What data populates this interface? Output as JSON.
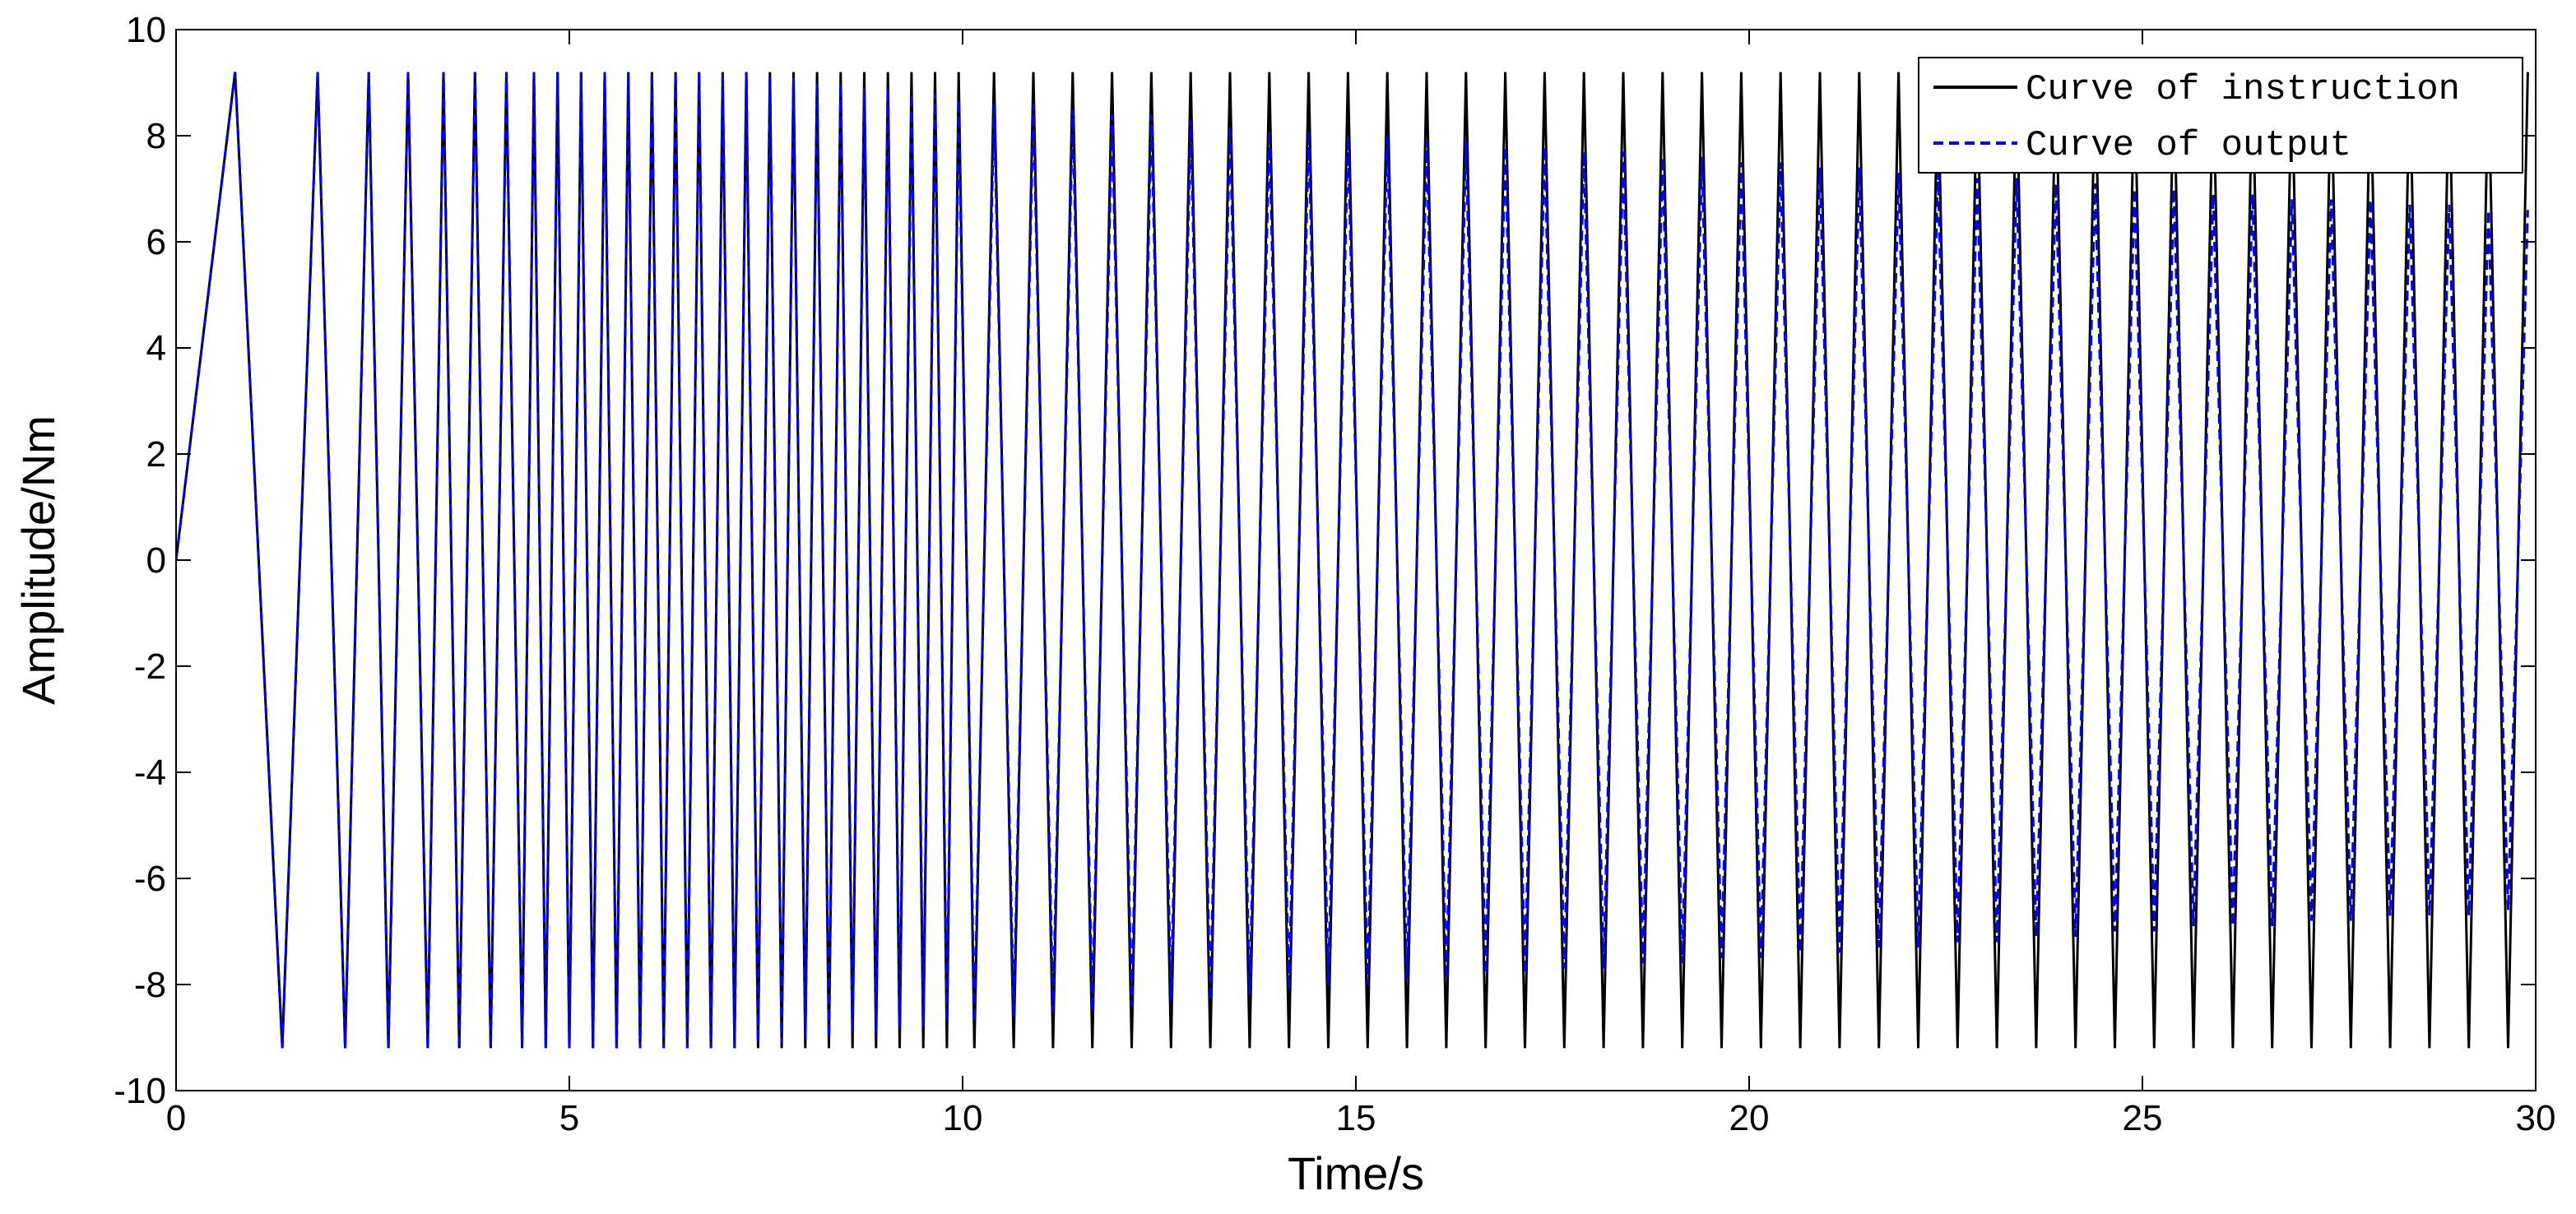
{
  "chart_data": {
    "type": "line",
    "xlabel": "Time/s",
    "ylabel": "Amplitude/Nm",
    "xlim": [
      0,
      30
    ],
    "ylim": [
      -10,
      10
    ],
    "xticks": [
      0,
      5,
      10,
      15,
      20,
      25,
      30
    ],
    "yticks": [
      -10,
      -8,
      -6,
      -4,
      -2,
      0,
      2,
      4,
      6,
      8,
      10
    ],
    "grid": false,
    "legend": "upper right",
    "x": [
      0,
      0.75,
      1.35,
      1.8,
      2.15,
      2.45,
      2.7,
      2.95,
      3.2,
      3.4,
      3.6,
      3.8,
      4.0,
      4.2,
      4.4,
      4.55,
      4.7,
      4.85,
      5.0,
      5.15,
      5.3,
      5.45,
      5.6,
      5.75,
      5.9,
      6.05,
      6.2,
      6.35,
      6.5,
      6.65,
      6.8,
      6.95,
      7.1,
      7.25,
      7.4,
      7.55,
      7.7,
      7.85,
      8.0,
      8.15,
      8.3,
      8.45,
      8.6,
      8.75,
      8.9,
      9.05,
      9.2,
      9.35,
      9.5,
      9.65,
      9.8,
      9.95,
      10.15,
      10.4,
      10.65,
      10.9,
      11.15,
      11.4,
      11.65,
      11.9,
      12.15,
      12.4,
      12.65,
      12.9,
      13.15,
      13.4,
      13.65,
      13.9,
      14.15,
      14.4,
      14.65,
      14.9,
      15.15,
      15.4,
      15.65,
      15.9,
      16.15,
      16.4,
      16.65,
      16.9,
      17.15,
      17.4,
      17.65,
      17.9,
      18.15,
      18.4,
      18.65,
      18.9,
      19.15,
      19.4,
      19.65,
      19.9,
      20.15,
      20.4,
      20.65,
      20.9,
      21.15,
      21.4,
      21.65,
      21.9,
      22.15,
      22.4,
      22.65,
      22.9,
      23.15,
      23.4,
      23.65,
      23.9,
      24.15,
      24.4,
      24.65,
      24.9,
      25.15,
      25.4,
      25.65,
      25.9,
      26.15,
      26.4,
      26.65,
      26.9,
      27.15,
      27.4,
      27.65,
      27.9,
      28.15,
      28.4,
      28.65,
      28.9,
      29.15,
      29.4,
      29.65,
      29.9
    ],
    "series": [
      {
        "name": "Curve of instruction",
        "color": "#000000",
        "linestyle": "solid",
        "values": [
          0,
          9.2,
          -9.2,
          9.2,
          -9.2,
          9.2,
          -9.2,
          9.2,
          -9.2,
          9.2,
          -9.2,
          9.2,
          -9.2,
          9.2,
          -9.2,
          9.2,
          -9.2,
          9.2,
          -9.2,
          9.2,
          -9.2,
          9.2,
          -9.2,
          9.2,
          -9.2,
          9.2,
          -9.2,
          9.2,
          -9.2,
          9.2,
          -9.2,
          9.2,
          -9.2,
          9.2,
          -9.2,
          9.2,
          -9.2,
          9.2,
          -9.2,
          9.2,
          -9.2,
          9.2,
          -9.2,
          9.2,
          -9.2,
          9.2,
          -9.2,
          9.2,
          -9.2,
          9.2,
          -9.2,
          9.2,
          -9.2,
          9.2,
          -9.2,
          9.2,
          -9.2,
          9.2,
          -9.2,
          9.2,
          -9.2,
          9.2,
          -9.2,
          9.2,
          -9.2,
          9.2,
          -9.2,
          9.2,
          -9.2,
          9.2,
          -9.2,
          9.2,
          -9.2,
          9.2,
          -9.2,
          9.2,
          -9.2,
          9.2,
          -9.2,
          9.2,
          -9.2,
          9.2,
          -9.2,
          9.2,
          -9.2,
          9.2,
          -9.2,
          9.2,
          -9.2,
          9.2,
          -9.2,
          9.2,
          -9.2,
          9.2,
          -9.2,
          9.2,
          -9.2,
          9.2,
          -9.2,
          9.2,
          -9.2,
          9.2,
          -9.2,
          9.2,
          -9.2,
          9.2,
          -9.2,
          9.2,
          -9.2,
          9.2,
          -9.2,
          9.2,
          -9.2,
          9.2,
          -9.2,
          9.2,
          -9.2,
          9.2,
          -9.2,
          9.2,
          -9.2,
          9.2,
          -9.2,
          9.2,
          -9.2,
          9.2,
          -9.2,
          9.2,
          -9.2,
          9.2,
          -9.2,
          9.2
        ]
      },
      {
        "name": "Curve of output",
        "color": "#0000ff",
        "linestyle": "dashed",
        "values": [
          0,
          9.2,
          -9.2,
          9.2,
          -9.2,
          9.2,
          -9.2,
          9.2,
          -9.2,
          9.2,
          -9.2,
          9.2,
          -9.2,
          9.2,
          -9.2,
          9.2,
          -9.2,
          9.2,
          -9.2,
          9.2,
          -9.2,
          9.2,
          -9.2,
          9.2,
          -9.2,
          9.2,
          -9.2,
          9.2,
          -9.2,
          9.2,
          -9.2,
          9.2,
          -9.2,
          9.2,
          -9.1,
          9.1,
          -9.1,
          9.1,
          -9.0,
          9.0,
          -9.0,
          9.0,
          -8.9,
          8.9,
          -8.9,
          8.9,
          -8.8,
          8.8,
          -8.8,
          8.8,
          -8.7,
          8.7,
          -8.7,
          8.6,
          -8.6,
          8.6,
          -8.5,
          8.5,
          -8.5,
          8.4,
          -8.4,
          8.4,
          -8.3,
          8.3,
          -8.3,
          8.2,
          -8.2,
          8.1,
          -8.1,
          8.1,
          -8.0,
          8.0,
          -8.0,
          8.0,
          -7.9,
          7.9,
          -7.9,
          7.9,
          -7.8,
          7.8,
          -7.8,
          7.8,
          -7.7,
          7.7,
          -7.7,
          7.7,
          -7.6,
          7.6,
          -7.6,
          7.6,
          -7.5,
          7.5,
          -7.5,
          7.5,
          -7.4,
          7.4,
          -7.4,
          7.4,
          -7.3,
          7.3,
          -7.3,
          7.3,
          -7.2,
          7.2,
          -7.2,
          7.2,
          -7.1,
          7.1,
          -7.1,
          7.1,
          -7.0,
          7.0,
          -7.0,
          7.0,
          -6.9,
          6.9,
          -6.9,
          6.9,
          -6.9,
          6.8,
          -6.8,
          6.8,
          -6.8,
          6.8,
          -6.7,
          6.7,
          -6.7,
          6.7,
          -6.7,
          6.6,
          -6.6,
          6.6
        ]
      }
    ]
  }
}
